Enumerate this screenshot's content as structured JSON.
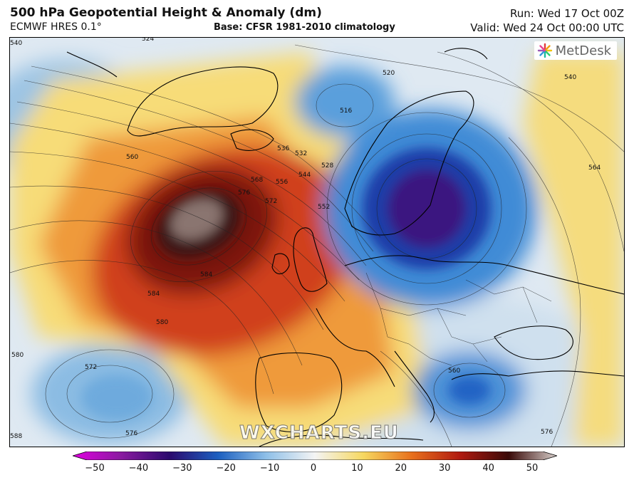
{
  "header": {
    "title": "500 hPa Geopotential Height & Anomaly (dm)",
    "model": "ECMWF HRES 0.1°",
    "base": "Base: CFSR 1981-2010 climatology",
    "run": "Run: Wed 17 Oct 00Z",
    "valid": "Valid: Wed 24 Oct 00:00 UTC"
  },
  "map": {
    "logo": "MetDesk",
    "watermark": "WXCHARTS.EU",
    "contour_labels": [
      "524",
      "540",
      "520",
      "516",
      "536",
      "532",
      "528",
      "560",
      "568",
      "576",
      "572",
      "556",
      "544",
      "552",
      "584",
      "580",
      "580",
      "572",
      "576",
      "560",
      "576",
      "540",
      "564",
      "584",
      "588"
    ]
  },
  "colorbar": {
    "ticks": [
      "−50",
      "−40",
      "−30",
      "−20",
      "−10",
      "0",
      "10",
      "20",
      "30",
      "40",
      "50"
    ],
    "colors": {
      "min": "#e000e0",
      "deep_purple": "#2b0a6e",
      "blue": "#1c5fc0",
      "light_blue": "#8fc0e8",
      "neutral": "#f4f4f4",
      "yellow": "#f6d860",
      "orange": "#e8701c",
      "red": "#b01a10",
      "dark_red": "#3a0a08",
      "max": "#d8d0cc"
    }
  }
}
